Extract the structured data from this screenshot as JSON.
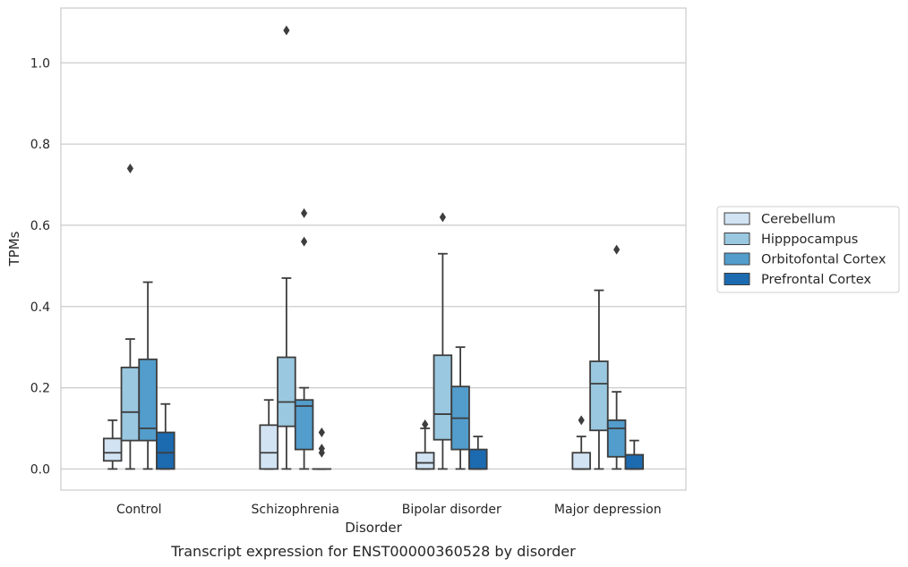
{
  "chart_data": {
    "type": "box",
    "caption": "Transcript expression for ENST00000360528 by disorder",
    "xlabel": "Disorder",
    "ylabel": "TPMs",
    "ylim": [
      -0.052,
      1.135
    ],
    "yticks": [
      0.0,
      0.2,
      0.4,
      0.6,
      0.8,
      1.0
    ],
    "ytick_labels": [
      "0.0",
      "0.2",
      "0.4",
      "0.6",
      "0.8",
      "1.0"
    ],
    "grid": "horizontal",
    "legend_position": "right",
    "categories": [
      "Control",
      "Schizophrenia",
      "Bipolar disorder",
      "Major depression"
    ],
    "series": [
      {
        "name": "Cerebellum",
        "color": "#d2e3f3",
        "boxes": [
          {
            "whisker_low": 0.0,
            "q1": 0.02,
            "median": 0.04,
            "q3": 0.075,
            "whisker_high": 0.12,
            "outliers": []
          },
          {
            "whisker_low": 0.0,
            "q1": 0.0,
            "median": 0.04,
            "q3": 0.108,
            "whisker_high": 0.17,
            "outliers": []
          },
          {
            "whisker_low": 0.0,
            "q1": 0.0,
            "median": 0.015,
            "q3": 0.04,
            "whisker_high": 0.1,
            "outliers": [
              0.11
            ]
          },
          {
            "whisker_low": 0.0,
            "q1": 0.0,
            "median": 0.0,
            "q3": 0.04,
            "whisker_high": 0.08,
            "outliers": [
              0.12
            ]
          }
        ]
      },
      {
        "name": "Hipppocampus",
        "color": "#9ac8e0",
        "boxes": [
          {
            "whisker_low": 0.0,
            "q1": 0.07,
            "median": 0.14,
            "q3": 0.25,
            "whisker_high": 0.32,
            "outliers": [
              0.74
            ]
          },
          {
            "whisker_low": 0.0,
            "q1": 0.105,
            "median": 0.165,
            "q3": 0.275,
            "whisker_high": 0.47,
            "outliers": [
              1.08
            ]
          },
          {
            "whisker_low": 0.0,
            "q1": 0.072,
            "median": 0.135,
            "q3": 0.28,
            "whisker_high": 0.53,
            "outliers": [
              0.62
            ]
          },
          {
            "whisker_low": 0.0,
            "q1": 0.095,
            "median": 0.21,
            "q3": 0.265,
            "whisker_high": 0.44,
            "outliers": []
          }
        ]
      },
      {
        "name": "Orbitofontal Cortex",
        "color": "#529dcc",
        "boxes": [
          {
            "whisker_low": 0.0,
            "q1": 0.07,
            "median": 0.1,
            "q3": 0.27,
            "whisker_high": 0.46,
            "outliers": []
          },
          {
            "whisker_low": 0.0,
            "q1": 0.048,
            "median": 0.155,
            "q3": 0.17,
            "whisker_high": 0.2,
            "outliers": [
              0.56,
              0.63
            ]
          },
          {
            "whisker_low": 0.0,
            "q1": 0.048,
            "median": 0.125,
            "q3": 0.203,
            "whisker_high": 0.3,
            "outliers": []
          },
          {
            "whisker_low": 0.0,
            "q1": 0.03,
            "median": 0.1,
            "q3": 0.12,
            "whisker_high": 0.19,
            "outliers": [
              0.54
            ]
          }
        ]
      },
      {
        "name": "Prefrontal Cortex",
        "color": "#1c6aaf",
        "boxes": [
          {
            "whisker_low": 0.0,
            "q1": 0.0,
            "median": 0.04,
            "q3": 0.09,
            "whisker_high": 0.16,
            "outliers": []
          },
          {
            "whisker_low": 0.0,
            "q1": 0.0,
            "median": 0.0,
            "q3": 0.0,
            "whisker_high": 0.0,
            "outliers": [
              0.04,
              0.05,
              0.09
            ]
          },
          {
            "whisker_low": 0.0,
            "q1": 0.0,
            "median": 0.0,
            "q3": 0.048,
            "whisker_high": 0.08,
            "outliers": []
          },
          {
            "whisker_low": 0.0,
            "q1": 0.0,
            "median": 0.0,
            "q3": 0.035,
            "whisker_high": 0.07,
            "outliers": []
          }
        ]
      }
    ]
  }
}
